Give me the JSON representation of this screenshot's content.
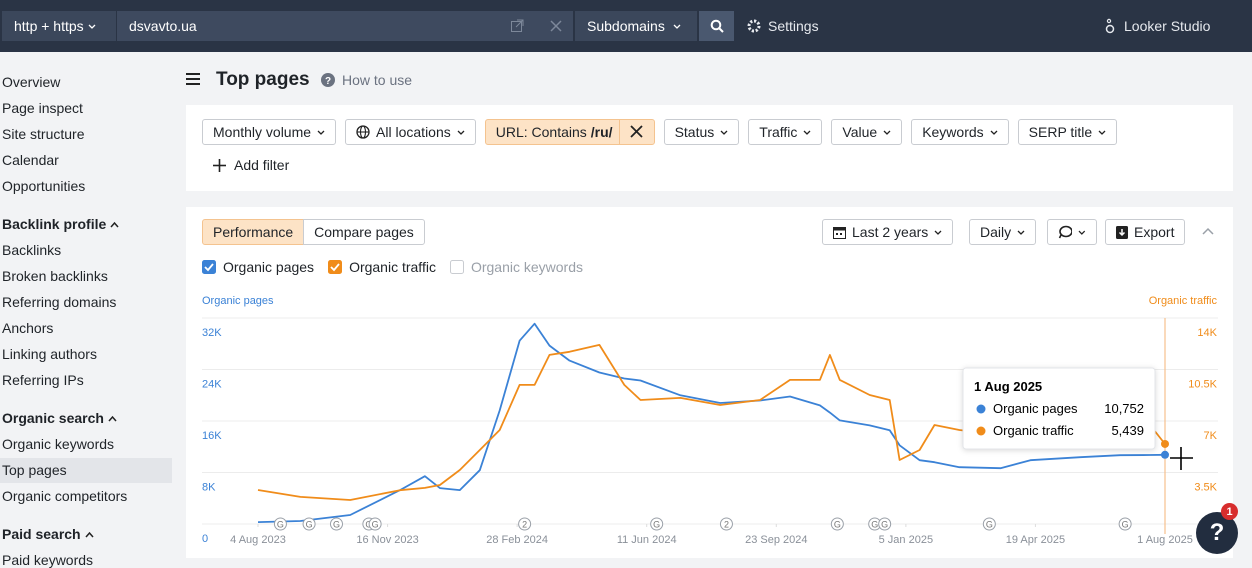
{
  "topbar": {
    "protocol": "http + https",
    "domain": "dsvavto.ua",
    "mode": "Subdomains",
    "settings": "Settings",
    "looker": "Looker Studio"
  },
  "sidebar": {
    "items": [
      "Overview",
      "Page inspect",
      "Site structure",
      "Calendar",
      "Opportunities"
    ],
    "groups": [
      {
        "title": "Backlink profile",
        "items": [
          "Backlinks",
          "Broken backlinks",
          "Referring domains",
          "Anchors",
          "Linking authors",
          "Referring IPs"
        ]
      },
      {
        "title": "Organic search",
        "items": [
          "Organic keywords",
          "Top pages",
          "Organic competitors"
        ]
      },
      {
        "title": "Paid search",
        "items": [
          "Paid keywords"
        ]
      }
    ]
  },
  "header": {
    "title": "Top pages",
    "help": "How to use"
  },
  "filters": {
    "items": [
      {
        "label": "Monthly volume"
      },
      {
        "label": "All locations"
      },
      {
        "label": "URL: Contains",
        "value": "/ru/"
      },
      {
        "label": "Status"
      },
      {
        "label": "Traffic"
      },
      {
        "label": "Value"
      },
      {
        "label": "Keywords"
      },
      {
        "label": "SERP title"
      }
    ],
    "add": "Add filter"
  },
  "panel": {
    "tabs": [
      "Performance",
      "Compare pages"
    ],
    "controls": {
      "range": "Last 2 years",
      "interval": "Daily",
      "export": "Export"
    },
    "inactive_series": [
      "Organic keywords"
    ]
  },
  "chart_data": {
    "type": "line",
    "ylabel": "Organic pages",
    "y2label": "Organic traffic",
    "x": [
      0,
      34,
      74,
      114,
      134,
      146,
      162,
      178,
      194,
      210,
      222,
      234,
      250,
      274,
      294,
      307,
      339,
      371,
      403,
      427,
      451,
      459,
      467,
      491,
      507,
      515,
      531,
      543,
      563,
      596,
      620,
      660,
      692,
      716,
      728
    ],
    "xlim": [
      0,
      728
    ],
    "xticks": [
      {
        "value": 0,
        "label": "4 Aug 2023"
      },
      {
        "value": 104,
        "label": "16 Nov 2023"
      },
      {
        "value": 208,
        "label": "28 Feb 2024"
      },
      {
        "value": 312,
        "label": "11 Jun 2024"
      },
      {
        "value": 416,
        "label": "23 Sep 2024"
      },
      {
        "value": 520,
        "label": "5 Jan 2025"
      },
      {
        "value": 624,
        "label": "19 Apr 2025"
      },
      {
        "value": 728,
        "label": "1 Aug 2025"
      }
    ],
    "ylim": [
      0,
      32000
    ],
    "yticks": [
      0,
      {
        "value": 8000,
        "label": "8K"
      },
      {
        "value": 16000,
        "label": "16K"
      },
      {
        "value": 24000,
        "label": "24K"
      },
      {
        "value": 32000,
        "label": "32K"
      }
    ],
    "y2lim": [
      0,
      14000
    ],
    "y2ticks": [
      {
        "value": 3500,
        "label": "3.5K"
      },
      {
        "value": 7000,
        "label": "7K"
      },
      {
        "value": 10500,
        "label": "10.5K"
      },
      {
        "value": 14000,
        "label": "14K"
      }
    ],
    "grid": true,
    "series": [
      {
        "name": "Organic pages",
        "color": "#3b82d6",
        "axis": "y",
        "values": [
          300,
          460,
          1400,
          5260,
          7430,
          5570,
          5260,
          8360,
          17650,
          28480,
          31110,
          27710,
          25390,
          23530,
          22600,
          22290,
          20000,
          18800,
          19190,
          19810,
          18420,
          17300,
          16100,
          15320,
          14550,
          12230,
          9910,
          9600,
          8820,
          8670,
          9910,
          10370,
          10680,
          10720,
          10752
        ]
      },
      {
        "name": "Organic traffic",
        "color": "#f08c1a",
        "axis": "y2",
        "values": [
          2310,
          1840,
          1630,
          2300,
          2450,
          2650,
          3670,
          5030,
          6390,
          9450,
          9450,
          11490,
          11700,
          12170,
          9450,
          8430,
          8570,
          8090,
          8430,
          9790,
          9790,
          11490,
          9790,
          8770,
          8430,
          4350,
          5030,
          6730,
          6390,
          6050,
          6200,
          6390,
          6500,
          6730,
          5439
        ]
      }
    ],
    "annotations": [
      {
        "x": 18,
        "label": "G"
      },
      {
        "x": 41,
        "label": "G"
      },
      {
        "x": 63,
        "label": "G"
      },
      {
        "x": 89,
        "label": "G"
      },
      {
        "x": 94,
        "label": "G"
      },
      {
        "x": 214,
        "label": "2"
      },
      {
        "x": 320,
        "label": "G"
      },
      {
        "x": 376,
        "label": "2"
      },
      {
        "x": 465,
        "label": "G"
      },
      {
        "x": 495,
        "label": "G"
      },
      {
        "x": 503,
        "label": "G"
      },
      {
        "x": 587,
        "label": "G"
      },
      {
        "x": 696,
        "label": "G"
      }
    ],
    "tooltip": {
      "title": "1 Aug 2025",
      "value_labels": [
        "10,752",
        "5,439"
      ]
    }
  },
  "help_badge": {
    "icon": "?",
    "count": "1"
  }
}
